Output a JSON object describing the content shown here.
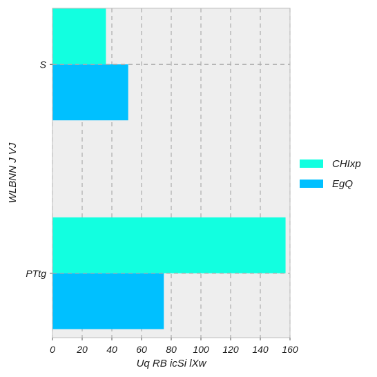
{
  "chart_data": {
    "type": "bar",
    "orientation": "horizontal",
    "categories": [
      "S",
      "PTtg"
    ],
    "series": [
      {
        "name": "CHIxp",
        "values": [
          36,
          157
        ],
        "color": "#12FFE0"
      },
      {
        "name": "EgQ",
        "values": [
          51,
          75
        ],
        "color": "#00C0FF"
      }
    ],
    "xlabel": "Uq RB icSi lXw",
    "ylabel": "WLBNN J VJ",
    "xlim": [
      0,
      160
    ],
    "xticks": [
      "0",
      "20",
      "40",
      "60",
      "80",
      "100",
      "120",
      "140",
      "160"
    ],
    "grid": true,
    "grid_style": "dashed",
    "legend_position": "right",
    "background_color": "#EEEEEE"
  }
}
